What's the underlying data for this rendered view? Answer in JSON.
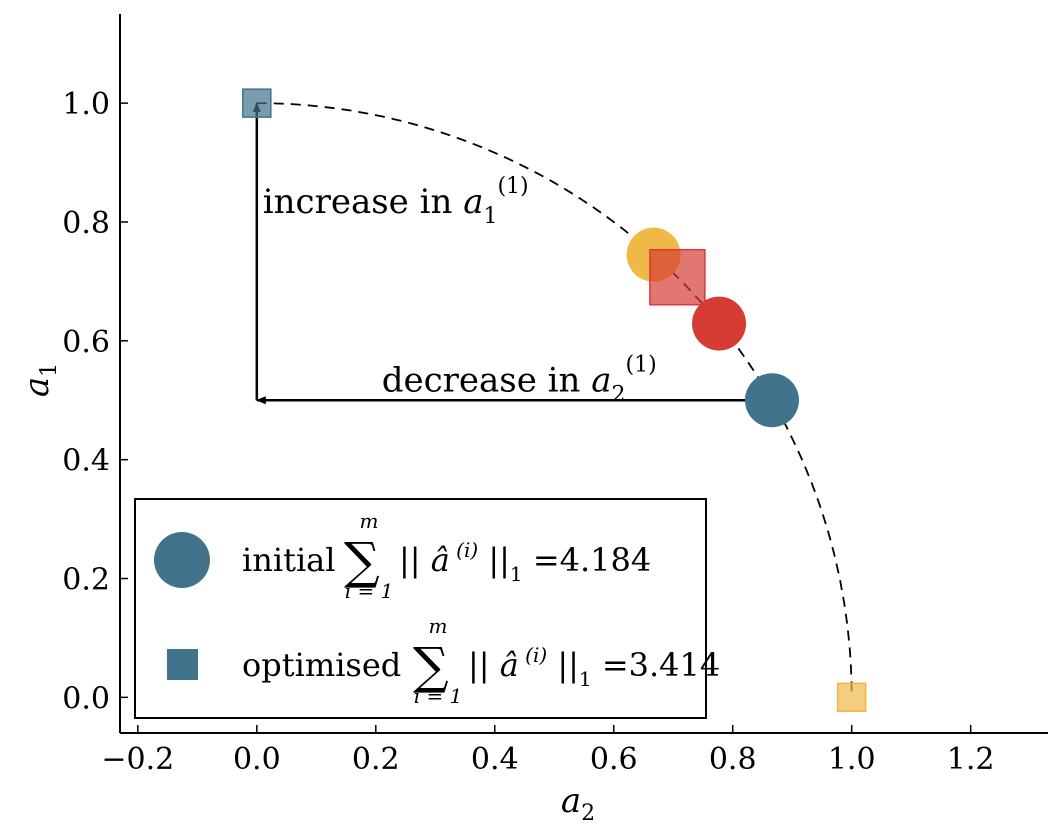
{
  "chart_data": {
    "type": "scatter",
    "title": "",
    "xlabel": "a",
    "xlabel_sub": "2",
    "ylabel": "a",
    "ylabel_sub": "1",
    "xlim": [
      -0.23,
      1.33
    ],
    "ylim": [
      -0.06,
      1.15
    ],
    "x_ticks": [
      -0.2,
      0.0,
      0.2,
      0.4,
      0.6,
      0.8,
      1.0,
      1.2
    ],
    "x_tick_labels": [
      "−0.2",
      "0.0",
      "0.2",
      "0.4",
      "0.6",
      "0.8",
      "1.0",
      "1.2"
    ],
    "y_ticks": [
      0.0,
      0.2,
      0.4,
      0.6,
      0.8,
      1.0
    ],
    "y_tick_labels": [
      "0.0",
      "0.2",
      "0.4",
      "0.6",
      "0.8",
      "1.0"
    ],
    "grid": false,
    "legend_position": "lower-left",
    "unit_circle_arc": {
      "style": "dashed",
      "color": "#000000",
      "x_from": 0.0,
      "x_to": 1.0
    },
    "initial_points": [
      {
        "x": 0.866,
        "y": 0.5,
        "color": "#41748c"
      },
      {
        "x": 0.777,
        "y": 0.629,
        "color": "#d63c33"
      },
      {
        "x": 0.667,
        "y": 0.745,
        "color": "#efb847"
      }
    ],
    "optimised_points": [
      {
        "x": 0.0,
        "y": 1.0,
        "color": "#41748c"
      },
      {
        "x": 0.707,
        "y": 0.707,
        "color": "#d63c33"
      },
      {
        "x": 1.0,
        "y": 0.0,
        "color": "#efb847"
      }
    ],
    "arrows": [
      {
        "from": [
          0.866,
          0.5
        ],
        "to": [
          0.0,
          0.5
        ]
      },
      {
        "from": [
          0.0,
          0.5
        ],
        "to": [
          0.0,
          1.0
        ]
      }
    ],
    "annotations": [
      {
        "text": "decrease in ",
        "var": "a",
        "sub": "2",
        "sup": "(1)",
        "x": 0.21,
        "y": 0.515
      },
      {
        "text": "increase in ",
        "var": "a",
        "sub": "1",
        "sup": "(1)",
        "x": 0.01,
        "y": 0.815
      }
    ],
    "legend": {
      "entries": [
        {
          "label_prefix": "initial",
          "sum_top": "m",
          "sum_bottom": "i = 1",
          "norm_text": "|| â",
          "norm_sup": "(i)",
          "norm_close": "||",
          "norm_sub": "1",
          "value": " =4.184",
          "marker": "circle"
        },
        {
          "label_prefix": "optimised",
          "sum_top": "m",
          "sum_bottom": "i = 1",
          "norm_text": "|| â",
          "norm_sup": "(i)",
          "norm_close": "||",
          "norm_sub": "1",
          "value": " =3.414",
          "marker": "square"
        }
      ],
      "marker_color": "#41748c"
    }
  }
}
